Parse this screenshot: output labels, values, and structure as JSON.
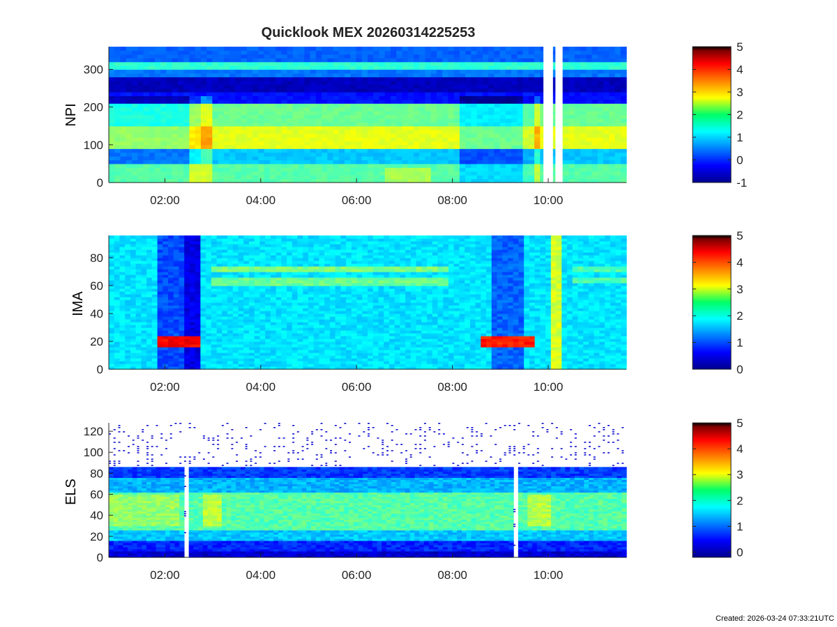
{
  "figure": {
    "title": "Quicklook MEX 20260314225253",
    "created": "Created: 2026-03-24 07:33:21UTC"
  },
  "chart_data": [
    {
      "type": "heatmap",
      "ylabel": "NPI",
      "xlabel": "",
      "x_tick_labels": [
        "02:00",
        "04:00",
        "06:00",
        "08:00",
        "10:00"
      ],
      "x_ticks_hours": [
        2,
        4,
        6,
        8,
        10
      ],
      "xlim_hours": [
        0.83,
        11.63
      ],
      "ylim": [
        0,
        360
      ],
      "y_ticks": [
        0,
        100,
        200,
        300
      ],
      "y_tick_labels": [
        "0",
        "100",
        "200",
        "300"
      ],
      "colorbar": {
        "range": [
          -1,
          5
        ],
        "ticks": [
          -1,
          0,
          1,
          2,
          3,
          4,
          5
        ],
        "tick_labels": [
          "-1",
          "0",
          "1",
          "2",
          "3",
          "4",
          "5"
        ]
      },
      "data_gap_hours": [
        [
          9.9,
          10.1
        ],
        [
          10.15,
          10.3
        ]
      ]
    },
    {
      "type": "heatmap",
      "ylabel": "IMA",
      "xlabel": "",
      "x_tick_labels": [
        "02:00",
        "04:00",
        "06:00",
        "08:00",
        "10:00"
      ],
      "x_ticks_hours": [
        2,
        4,
        6,
        8,
        10
      ],
      "xlim_hours": [
        0.83,
        11.63
      ],
      "ylim": [
        0,
        96
      ],
      "y_ticks": [
        0,
        20,
        40,
        60,
        80
      ],
      "y_tick_labels": [
        "0",
        "20",
        "40",
        "60",
        "80"
      ],
      "colorbar": {
        "range": [
          0,
          5
        ],
        "ticks": [
          0,
          1,
          2,
          3,
          4,
          5
        ],
        "tick_labels": [
          "0",
          "1",
          "2",
          "3",
          "4",
          "5"
        ]
      }
    },
    {
      "type": "heatmap",
      "ylabel": "ELS",
      "xlabel": "",
      "x_tick_labels": [
        "02:00",
        "04:00",
        "06:00",
        "08:00",
        "10:00"
      ],
      "x_ticks_hours": [
        2,
        4,
        6,
        8,
        10
      ],
      "xlim_hours": [
        0.83,
        11.63
      ],
      "ylim": [
        0,
        128
      ],
      "y_ticks": [
        0,
        20,
        40,
        60,
        80,
        100,
        120
      ],
      "y_tick_labels": [
        "0",
        "20",
        "40",
        "60",
        "80",
        "100",
        "120"
      ],
      "colorbar": {
        "range": [
          -0.2,
          5
        ],
        "ticks": [
          0,
          1,
          2,
          3,
          4,
          5
        ],
        "tick_labels": [
          "0",
          "1",
          "2",
          "3",
          "4",
          "5"
        ]
      }
    }
  ]
}
